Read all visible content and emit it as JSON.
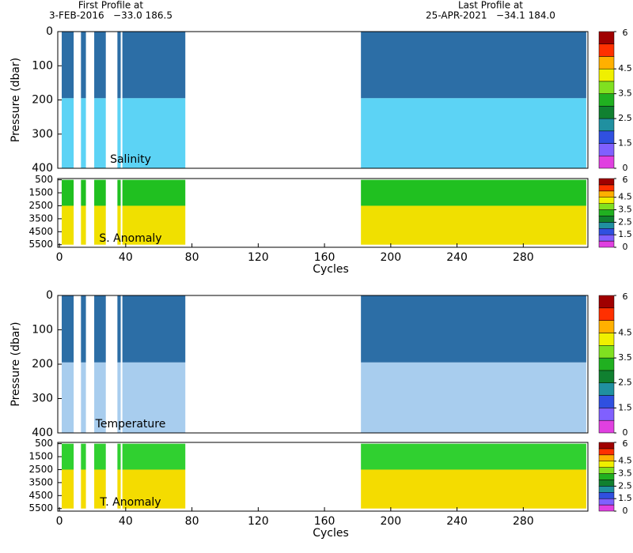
{
  "header": {
    "first_label": "First Profile at",
    "first_value": "3-FEB-2016   −33.0 186.5",
    "last_label": "Last Profile at",
    "last_value": "25-APR-2021   −34.1 184.0"
  },
  "chart_data": [
    {
      "type": "section",
      "title": "Salinity",
      "ylabel": "Pressure (dbar)",
      "xlim": [
        -1,
        319
      ],
      "ylim": [
        0,
        400
      ],
      "yticks": [
        0,
        100,
        200,
        300,
        400
      ],
      "spans": [
        [
          1.4,
          8.6
        ],
        [
          13,
          16
        ],
        [
          21,
          28
        ],
        [
          35,
          37
        ],
        [
          38,
          76
        ],
        [
          182,
          318
        ]
      ],
      "layers": [
        {
          "top": 0,
          "bottom": 195,
          "color": "#2c6ea6"
        },
        {
          "top": 195,
          "bottom": 400,
          "color": "#5cd3f5"
        }
      ],
      "colorbar": {
        "bounds": [
          0,
          1,
          1.5,
          2,
          2.5,
          3,
          3.5,
          4,
          4.5,
          5,
          5.5,
          6
        ],
        "colors": [
          "#e040e0",
          "#8060ff",
          "#3050e0",
          "#2090a0",
          "#108030",
          "#20b020",
          "#80e020",
          "#f0f000",
          "#ffb000",
          "#ff3000",
          "#a00000"
        ],
        "ticks": [
          0,
          1.5,
          2.5,
          3.5,
          4.5,
          6
        ]
      }
    },
    {
      "type": "section",
      "title": "S. Anomaly",
      "xlabel": "Cycles",
      "xlim": [
        -1,
        319
      ],
      "xticks": [
        0,
        40,
        80,
        120,
        160,
        200,
        240,
        280
      ],
      "ylim": [
        400,
        5700
      ],
      "yticks": [
        500,
        1500,
        2500,
        3500,
        4500,
        5500
      ],
      "spans": [
        [
          1.4,
          8.6
        ],
        [
          13,
          16
        ],
        [
          21,
          28
        ],
        [
          35,
          37
        ],
        [
          38,
          76
        ],
        [
          182,
          318
        ]
      ],
      "layers": [
        {
          "top": 500,
          "bottom": 2500,
          "color": "#20c020"
        },
        {
          "top": 2500,
          "bottom": 5500,
          "color": "#f0e000"
        }
      ],
      "colorbar": {
        "bounds": [
          0,
          1,
          1.5,
          2,
          2.5,
          3,
          3.5,
          4,
          4.5,
          5,
          5.5,
          6
        ],
        "colors": [
          "#e040e0",
          "#8060ff",
          "#3050e0",
          "#2090a0",
          "#108030",
          "#20b020",
          "#80e020",
          "#f0f000",
          "#ffb000",
          "#ff3000",
          "#a00000"
        ],
        "ticks": [
          0,
          1.5,
          2.5,
          3.5,
          4.5,
          6
        ]
      }
    },
    {
      "type": "section",
      "title": "Temperature",
      "ylabel": "Pressure (dbar)",
      "xlim": [
        -1,
        319
      ],
      "ylim": [
        0,
        400
      ],
      "yticks": [
        0,
        100,
        200,
        300,
        400
      ],
      "spans": [
        [
          1.4,
          8.6
        ],
        [
          13,
          16
        ],
        [
          21,
          28
        ],
        [
          35,
          37
        ],
        [
          38,
          76
        ],
        [
          182,
          318
        ]
      ],
      "layers": [
        {
          "top": 0,
          "bottom": 195,
          "color": "#2c6ea6"
        },
        {
          "top": 195,
          "bottom": 400,
          "color": "#a8cdee"
        }
      ],
      "colorbar": {
        "bounds": [
          0,
          1,
          1.5,
          2,
          2.5,
          3,
          3.5,
          4,
          4.5,
          5,
          5.5,
          6
        ],
        "colors": [
          "#e040e0",
          "#8060ff",
          "#3050e0",
          "#2090a0",
          "#108030",
          "#20b020",
          "#80e020",
          "#f0f000",
          "#ffb000",
          "#ff3000",
          "#a00000"
        ],
        "ticks": [
          0,
          1.5,
          2.5,
          3.5,
          4.5,
          6
        ]
      }
    },
    {
      "type": "section",
      "title": "T. Anomaly",
      "xlabel": "Cycles",
      "xlim": [
        -1,
        319
      ],
      "xticks": [
        0,
        40,
        80,
        120,
        160,
        200,
        240,
        280
      ],
      "ylim": [
        400,
        5700
      ],
      "yticks": [
        500,
        1500,
        2500,
        3500,
        4500,
        5500
      ],
      "spans": [
        [
          1.4,
          8.6
        ],
        [
          13,
          16
        ],
        [
          21,
          28
        ],
        [
          35,
          37
        ],
        [
          38,
          76
        ],
        [
          182,
          318
        ]
      ],
      "layers": [
        {
          "top": 500,
          "bottom": 2500,
          "color": "#30d030"
        },
        {
          "top": 2500,
          "bottom": 5500,
          "color": "#f4dc00"
        }
      ],
      "colorbar": {
        "bounds": [
          0,
          1,
          1.5,
          2,
          2.5,
          3,
          3.5,
          4,
          4.5,
          5,
          5.5,
          6
        ],
        "colors": [
          "#e040e0",
          "#8060ff",
          "#3050e0",
          "#2090a0",
          "#108030",
          "#20b020",
          "#80e020",
          "#f0f000",
          "#ffb000",
          "#ff3000",
          "#a00000"
        ],
        "ticks": [
          0,
          1.5,
          2.5,
          3.5,
          4.5,
          6
        ]
      }
    }
  ]
}
